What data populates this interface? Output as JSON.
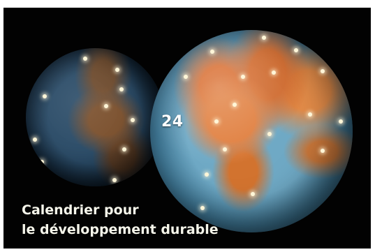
{
  "calendar": {
    "date_number": "24",
    "title_line_1": "Calendrier pour",
    "title_line_2": "le développement durable"
  },
  "colors": {
    "background": "#020202",
    "text": "#f5f5ea",
    "light_dots": "#fff6d8"
  }
}
